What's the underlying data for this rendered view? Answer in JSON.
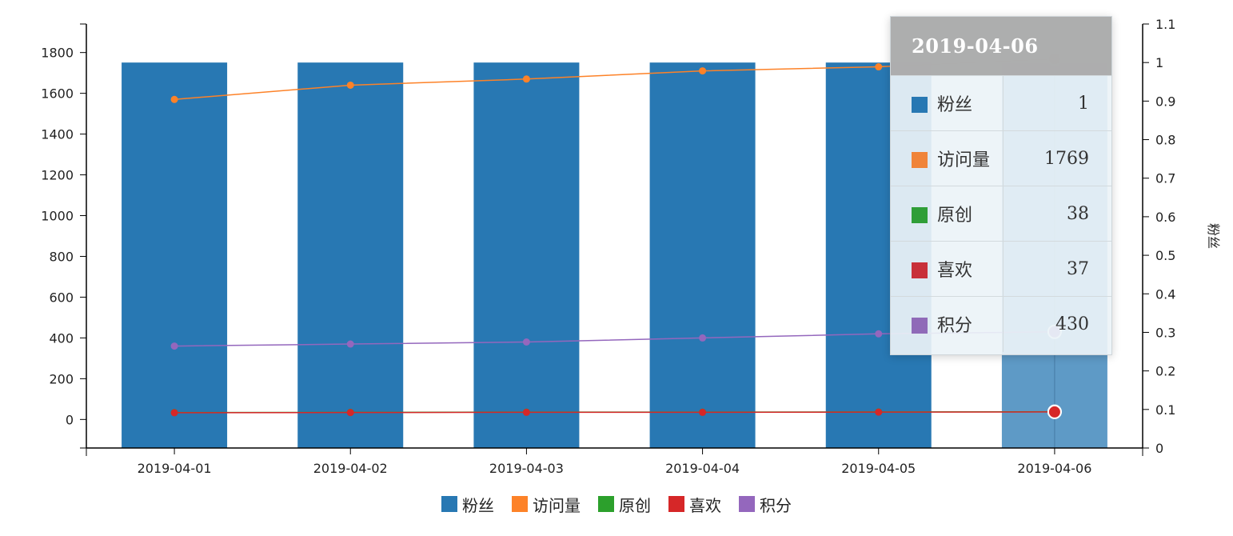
{
  "chart_data": {
    "type": "bar",
    "categories": [
      "2019-04-01",
      "2019-04-02",
      "2019-04-03",
      "2019-04-04",
      "2019-04-05",
      "2019-04-06"
    ],
    "left_axis": {
      "ticks": [
        "0",
        "200",
        "400",
        "600",
        "800",
        "1000",
        "1200",
        "1400",
        "1600",
        "1800"
      ],
      "range": [
        -140,
        1940
      ]
    },
    "right_axis": {
      "label": "粉丝",
      "ticks": [
        "0",
        "0.1",
        "0.2",
        "0.3",
        "0.4",
        "0.5",
        "0.6",
        "0.7",
        "0.8",
        "0.9",
        "1",
        "1.1"
      ],
      "range": [
        0,
        1.1
      ]
    },
    "series": [
      {
        "name": "粉丝",
        "type": "bar",
        "axis": "right",
        "color": "#2878b3",
        "values": [
          1,
          1,
          1,
          1,
          1,
          1
        ]
      },
      {
        "name": "访问量",
        "type": "line",
        "axis": "left",
        "color": "#fd8228",
        "values": [
          1570,
          1640,
          1670,
          1710,
          1730,
          1769
        ]
      },
      {
        "name": "原创",
        "type": "line",
        "axis": "left",
        "color": "#2ca02c",
        "values": [
          34,
          35,
          36,
          36,
          37,
          38
        ]
      },
      {
        "name": "喜欢",
        "type": "line",
        "axis": "left",
        "color": "#d62728",
        "values": [
          33,
          34,
          35,
          35,
          36,
          37
        ]
      },
      {
        "name": "积分",
        "type": "line",
        "axis": "left",
        "color": "#9467bd",
        "values": [
          360,
          370,
          380,
          400,
          420,
          430
        ]
      }
    ],
    "highlight_index": 5
  },
  "tooltip": {
    "title": "2019-04-06",
    "rows": [
      {
        "name": "粉丝",
        "value": "1",
        "color": "#2878b3"
      },
      {
        "name": "访问量",
        "value": "1769",
        "color": "#f0843a"
      },
      {
        "name": "原创",
        "value": "38",
        "color": "#2f9e38"
      },
      {
        "name": "喜欢",
        "value": "37",
        "color": "#c8303a"
      },
      {
        "name": "积分",
        "value": "430",
        "color": "#8f6ab8"
      }
    ]
  },
  "legend": [
    {
      "name": "粉丝",
      "color": "#2878b3"
    },
    {
      "name": "访问量",
      "color": "#fd8228"
    },
    {
      "name": "原创",
      "color": "#2ca02c"
    },
    {
      "name": "喜欢",
      "color": "#d62728"
    },
    {
      "name": "积分",
      "color": "#9467bd"
    }
  ]
}
